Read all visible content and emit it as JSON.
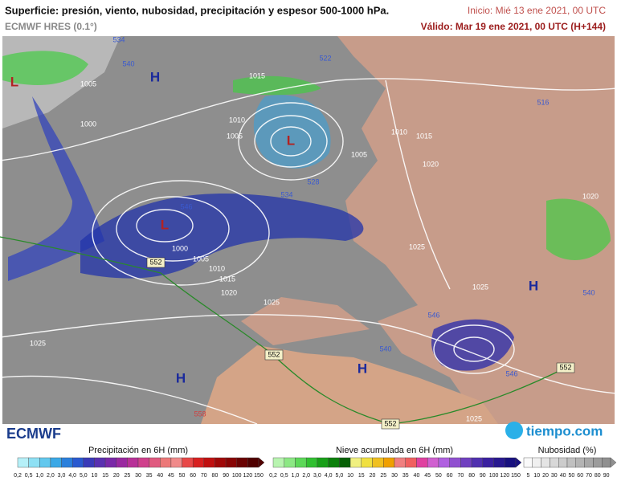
{
  "header": {
    "title": "Superficie: presión, viento, nubosidad, precipitación y espesor 500-1000 hPa.",
    "model": "ECMWF HRES (0.1°)",
    "init": "Inicio: Mié 13 ene 2021, 00 UTC",
    "valid": "Válido: Mar 19 ene 2021, 00 UTC (H+144)"
  },
  "map": {
    "labels": [
      "H",
      "L",
      "L",
      "L",
      "H",
      "H",
      "H",
      "1005",
      "1000",
      "1010",
      "1005",
      "1015",
      "1010",
      "1015",
      "1020",
      "1005",
      "1000",
      "1005",
      "1010",
      "1015",
      "1020",
      "1025",
      "1025",
      "1025",
      "1025",
      "1025",
      "1020",
      "534",
      "540",
      "522",
      "516",
      "528",
      "534",
      "546",
      "552",
      "552",
      "552",
      "552",
      "540",
      "546",
      "558",
      "540",
      "546"
    ]
  },
  "footer": {
    "logo_left": "ECMWF",
    "logo_right": "tiempo.com"
  },
  "legends": [
    {
      "title": "Precipitación en 6H (mm)",
      "labels": [
        "0,2",
        "0,5",
        "1,0",
        "2,0",
        "3,0",
        "4,0",
        "5,0",
        "10",
        "15",
        "20",
        "25",
        "30",
        "35",
        "40",
        "45",
        "50",
        "60",
        "70",
        "80",
        "90",
        "100",
        "120",
        "150"
      ]
    },
    {
      "title": "Nieve acumulada en 6H (mm)",
      "labels": [
        "0,2",
        "0,5",
        "1,0",
        "2,0",
        "3,0",
        "4,0",
        "5,0",
        "10",
        "15",
        "20",
        "25",
        "30",
        "35",
        "40",
        "45",
        "50",
        "60",
        "70",
        "80",
        "90",
        "100",
        "120",
        "150"
      ]
    },
    {
      "title": "Nubosidad (%)",
      "labels": [
        "5",
        "10",
        "20",
        "30",
        "40",
        "50",
        "60",
        "70",
        "80",
        "90"
      ]
    }
  ]
}
